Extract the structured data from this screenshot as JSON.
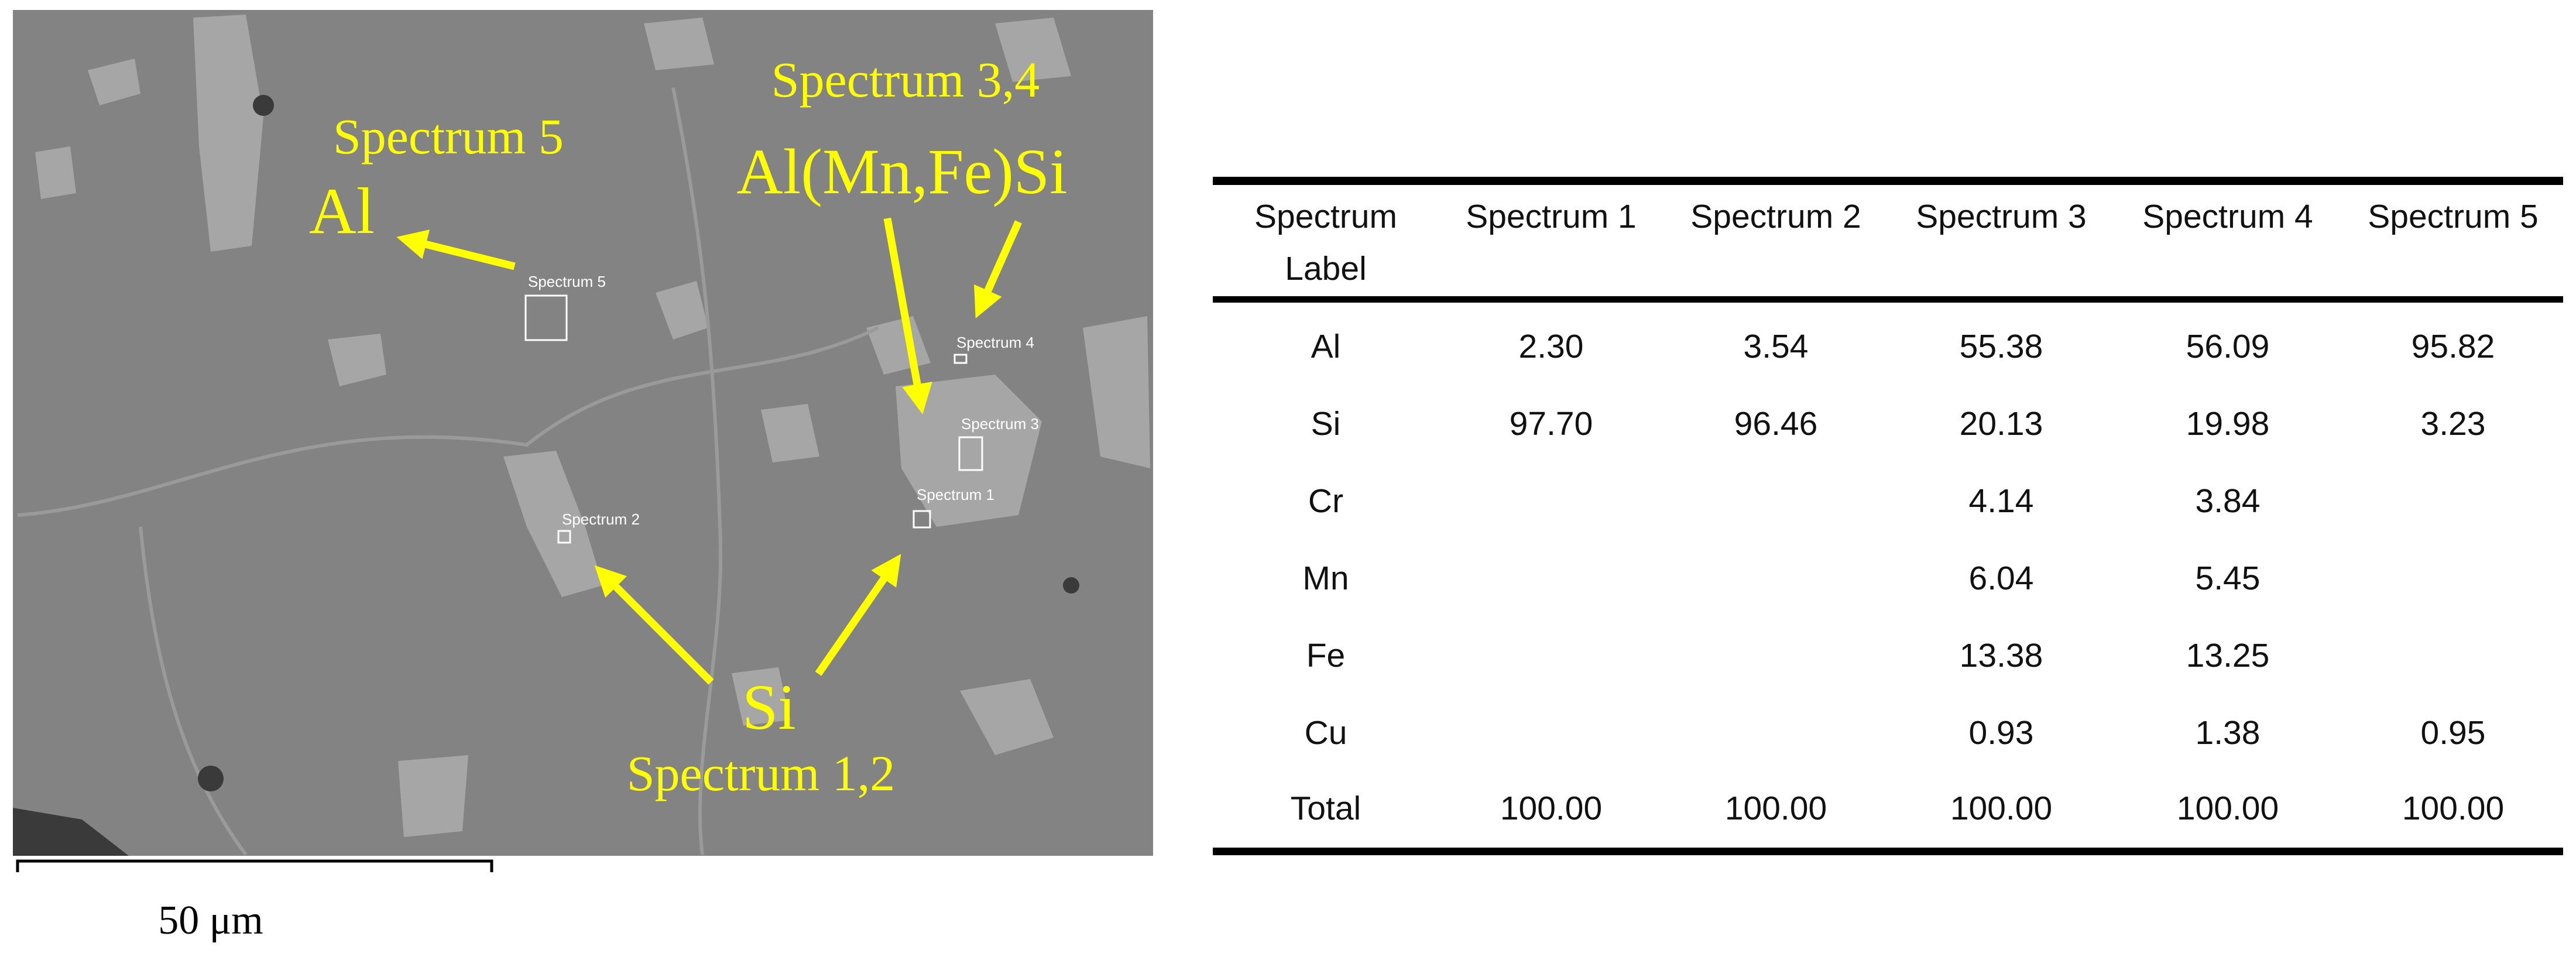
{
  "image": {
    "labels": [
      "Spectrum 5",
      "Al",
      "Spectrum 3,4",
      "Al(Mn,Fe)Si",
      "Si",
      "Spectrum 1,2"
    ],
    "spectrum_markers": [
      "Spectrum 5",
      "Spectrum 4",
      "Spectrum 3",
      "Spectrum 1",
      "Spectrum 2"
    ],
    "scale_bar": "50 μm"
  },
  "table": {
    "header": [
      "Spectrum Label",
      "Spectrum 1",
      "Spectrum 2",
      "Spectrum 3",
      "Spectrum 4",
      "Spectrum 5"
    ],
    "rows": [
      [
        "Al",
        "2.30",
        "3.54",
        "55.38",
        "56.09",
        "95.82"
      ],
      [
        "Si",
        "97.70",
        "96.46",
        "20.13",
        "19.98",
        "3.23"
      ],
      [
        "Cr",
        null,
        null,
        "4.14",
        "3.84",
        null
      ],
      [
        "Mn",
        null,
        null,
        "6.04",
        "5.45",
        null
      ],
      [
        "Fe",
        null,
        null,
        "13.38",
        "13.25",
        null
      ],
      [
        "Cu",
        null,
        null,
        "0.93",
        "1.38",
        "0.95"
      ],
      [
        "Total",
        "100.00",
        "100.00",
        "100.00",
        "100.00",
        "100.00"
      ]
    ]
  }
}
